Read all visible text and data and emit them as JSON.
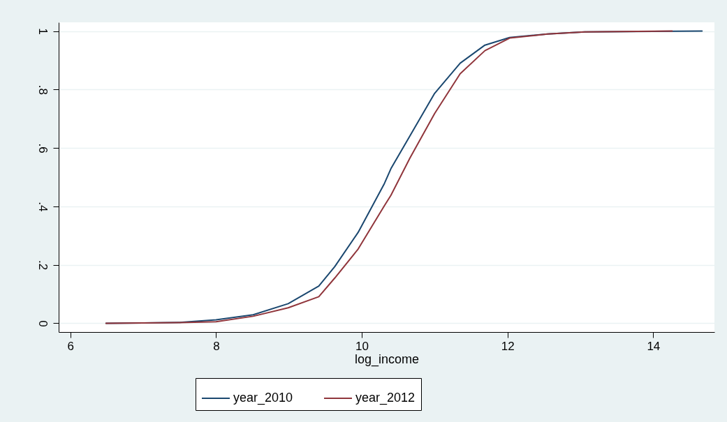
{
  "chart_data": {
    "type": "line",
    "xlabel": "log_income",
    "xlim": [
      5.84,
      14.84
    ],
    "ylim": [
      -0.03,
      1.03
    ],
    "xticks": [
      6,
      8,
      10,
      12,
      14
    ],
    "yticks": [
      0,
      {
        "value": 0.2,
        "label": ".2"
      },
      {
        "value": 0.4,
        "label": ".4"
      },
      {
        "value": 0.6,
        "label": ".6"
      },
      {
        "value": 0.8,
        "label": ".8"
      },
      1
    ],
    "grid": "y",
    "legend": "bottom",
    "line_style": "solid",
    "series": [
      {
        "name": "year_2010",
        "color": "#1a476f",
        "x": [
          6.49,
          7.0,
          7.5,
          8.0,
          8.51,
          8.99,
          9.41,
          9.63,
          9.95,
          10.31,
          10.4,
          10.66,
          11.0,
          11.35,
          11.69,
          12.03,
          12.55,
          13.06,
          14.0,
          14.67
        ],
        "values": [
          0,
          0.001,
          0.003,
          0.012,
          0.029,
          0.067,
          0.127,
          0.194,
          0.311,
          0.478,
          0.529,
          0.641,
          0.787,
          0.89,
          0.952,
          0.978,
          0.99,
          0.997,
          0.999,
          1.0
        ]
      },
      {
        "name": "year_2012",
        "color": "#90353b",
        "x": [
          6.49,
          7.0,
          7.5,
          8.0,
          8.51,
          8.99,
          9.41,
          9.63,
          9.95,
          10.31,
          10.4,
          10.66,
          11.0,
          11.35,
          11.69,
          12.03,
          12.55,
          13.06,
          14.26
        ],
        "values": [
          0,
          0.001,
          0.002,
          0.005,
          0.024,
          0.053,
          0.091,
          0.155,
          0.254,
          0.402,
          0.438,
          0.565,
          0.718,
          0.854,
          0.933,
          0.976,
          0.99,
          0.997,
          1.0
        ]
      }
    ]
  }
}
